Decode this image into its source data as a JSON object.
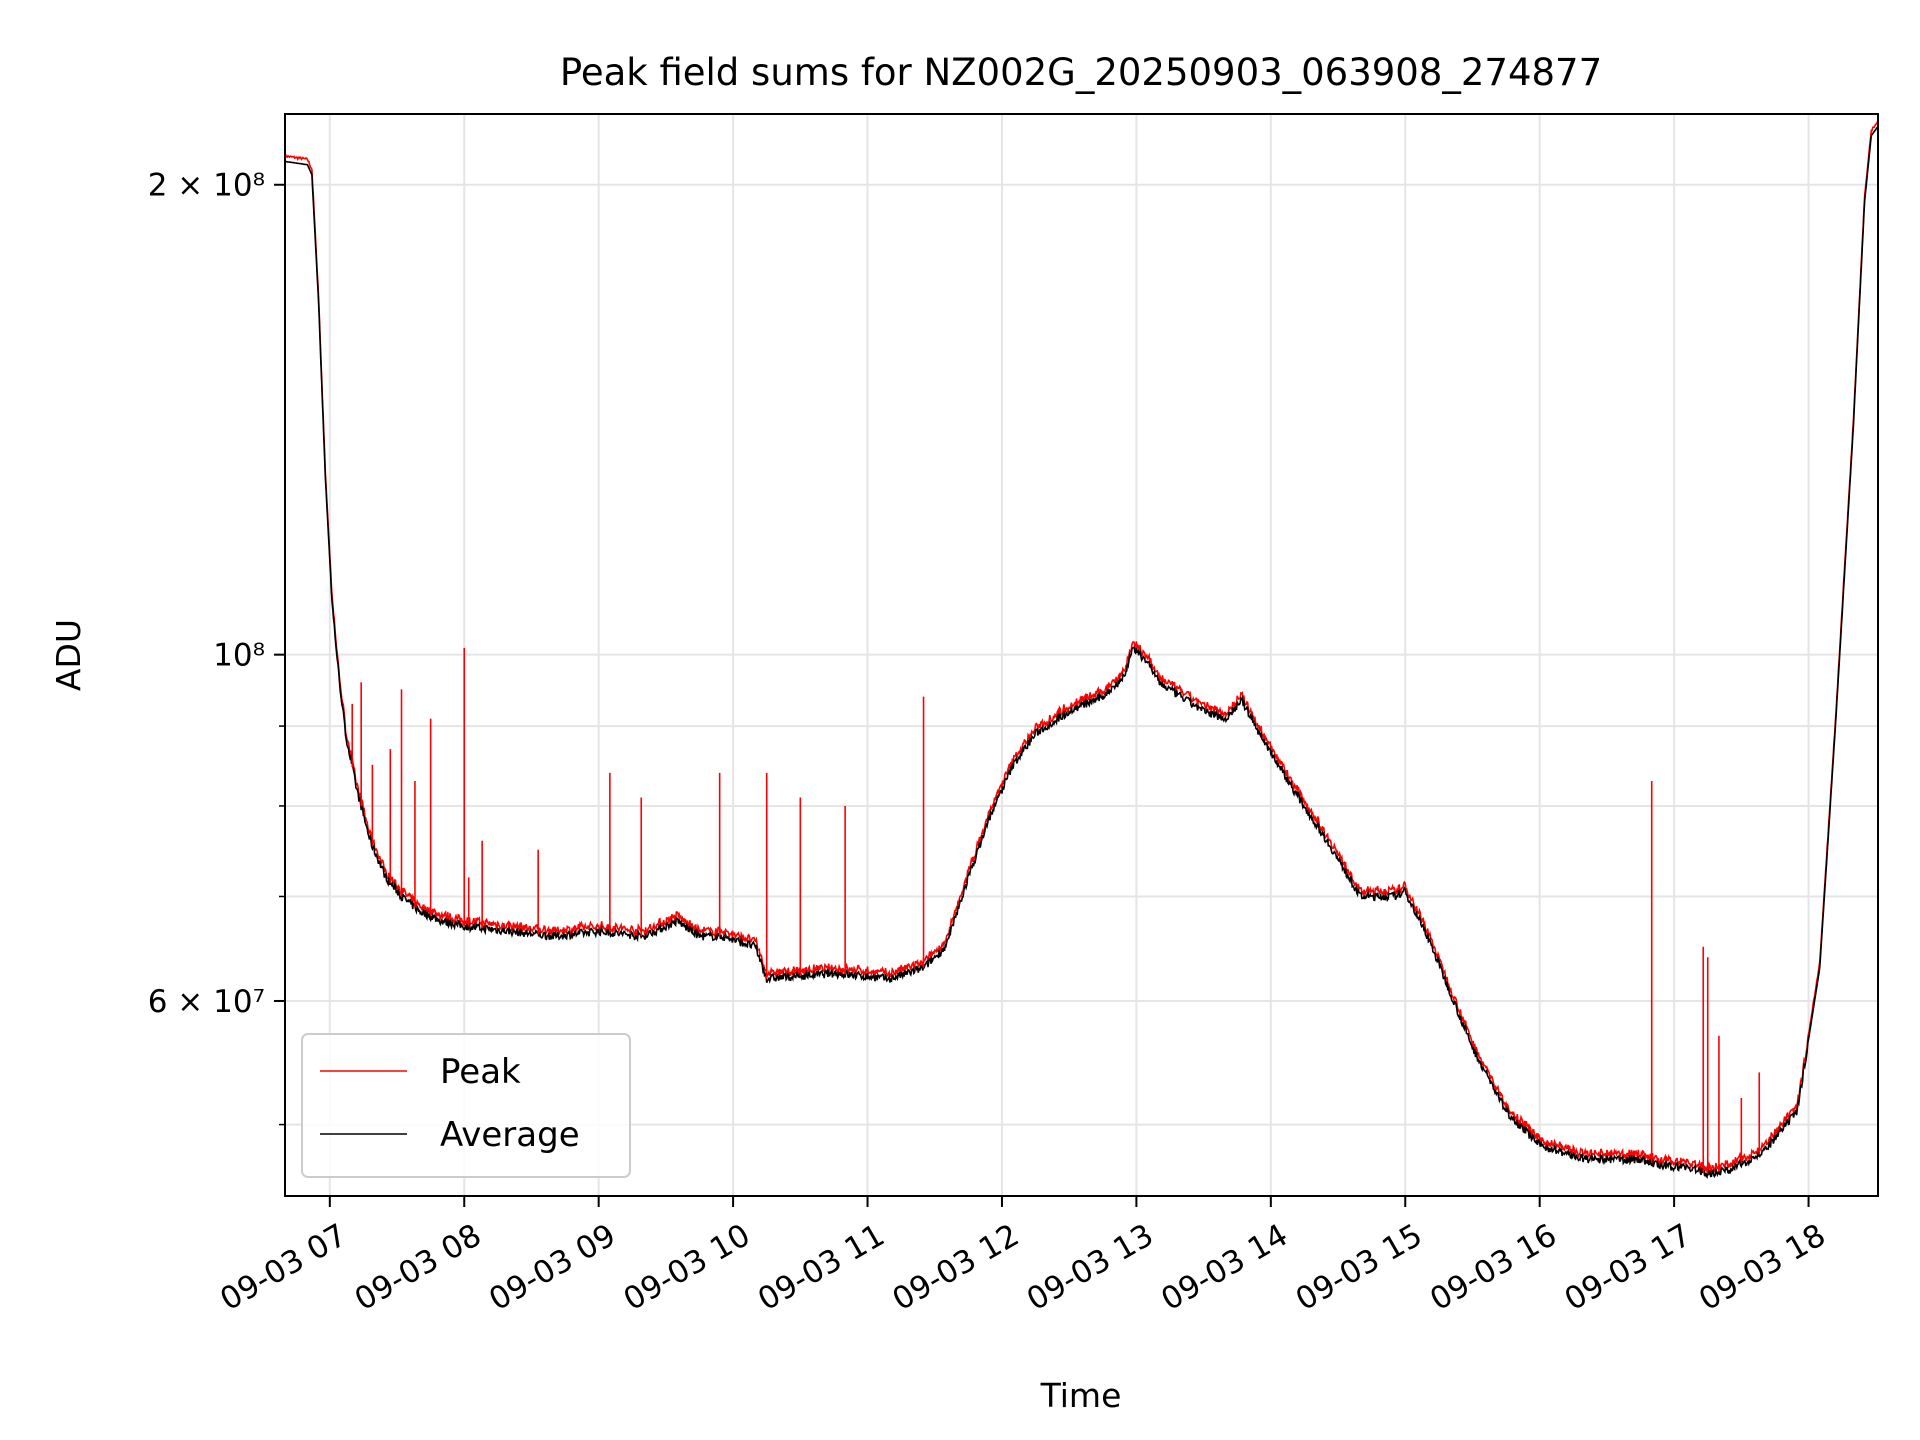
{
  "chart_data": {
    "type": "line",
    "title": "Peak field sums for NZ002G_20250903_063908_274877",
    "xlabel": "Time",
    "ylabel": "ADU",
    "x_range": [
      "2025-09-03 06:40",
      "2025-09-03 18:31"
    ],
    "y_scale": "log",
    "ylim": [
      45000000,
      222000000
    ],
    "grid": true,
    "legend_position": "lower left",
    "x_ticks": [
      {
        "value": "2025-09-03 07:00",
        "label": "09-03 07"
      },
      {
        "value": "2025-09-03 08:00",
        "label": "09-03 08"
      },
      {
        "value": "2025-09-03 09:00",
        "label": "09-03 09"
      },
      {
        "value": "2025-09-03 10:00",
        "label": "09-03 10"
      },
      {
        "value": "2025-09-03 11:00",
        "label": "09-03 11"
      },
      {
        "value": "2025-09-03 12:00",
        "label": "09-03 12"
      },
      {
        "value": "2025-09-03 13:00",
        "label": "09-03 13"
      },
      {
        "value": "2025-09-03 14:00",
        "label": "09-03 14"
      },
      {
        "value": "2025-09-03 15:00",
        "label": "09-03 15"
      },
      {
        "value": "2025-09-03 16:00",
        "label": "09-03 16"
      },
      {
        "value": "2025-09-03 17:00",
        "label": "09-03 17"
      },
      {
        "value": "2025-09-03 18:00",
        "label": "09-03 18"
      }
    ],
    "y_major_ticks": [
      {
        "value": 200000000,
        "label": "2 × 10⁸"
      },
      {
        "value": 100000000,
        "label": "10⁸"
      },
      {
        "value": 60000000,
        "label": "6 × 10⁷"
      }
    ],
    "y_minor_ticks": [
      50000000,
      70000000,
      80000000,
      90000000
    ],
    "series": [
      {
        "name": "Average",
        "color": "#000000",
        "points": [
          [
            "2025-09-03 06:40",
            207000000
          ],
          [
            "2025-09-03 06:50",
            206000000
          ],
          [
            "2025-09-03 06:52",
            203000000
          ],
          [
            "2025-09-03 06:55",
            168000000
          ],
          [
            "2025-09-03 06:58",
            130000000
          ],
          [
            "2025-09-03 07:01",
            108000000
          ],
          [
            "2025-09-03 07:04",
            97000000
          ],
          [
            "2025-09-03 07:07",
            89000000
          ],
          [
            "2025-09-03 07:12",
            82000000
          ],
          [
            "2025-09-03 07:18",
            76000000
          ],
          [
            "2025-09-03 07:25",
            72000000
          ],
          [
            "2025-09-03 07:32",
            70000000
          ],
          [
            "2025-09-03 07:40",
            68500000
          ],
          [
            "2025-09-03 07:50",
            67500000
          ],
          [
            "2025-09-03 08:00",
            67000000
          ],
          [
            "2025-09-03 08:20",
            66500000
          ],
          [
            "2025-09-03 08:40",
            66000000
          ],
          [
            "2025-09-03 09:00",
            66500000
          ],
          [
            "2025-09-03 09:20",
            66000000
          ],
          [
            "2025-09-03 09:35",
            67500000
          ],
          [
            "2025-09-03 09:45",
            66000000
          ],
          [
            "2025-09-03 09:55",
            66000000
          ],
          [
            "2025-09-03 10:10",
            65000000
          ],
          [
            "2025-09-03 10:15",
            62000000
          ],
          [
            "2025-09-03 10:45",
            62500000
          ],
          [
            "2025-09-03 11:10",
            62000000
          ],
          [
            "2025-09-03 11:25",
            63000000
          ],
          [
            "2025-09-03 11:35",
            65000000
          ],
          [
            "2025-09-03 11:45",
            72000000
          ],
          [
            "2025-09-03 11:55",
            79000000
          ],
          [
            "2025-09-03 12:05",
            85000000
          ],
          [
            "2025-09-03 12:15",
            89000000
          ],
          [
            "2025-09-03 12:30",
            92000000
          ],
          [
            "2025-09-03 12:45",
            94000000
          ],
          [
            "2025-09-03 12:55",
            97000000
          ],
          [
            "2025-09-03 12:58",
            101000000
          ],
          [
            "2025-09-03 13:05",
            99000000
          ],
          [
            "2025-09-03 13:10",
            96000000
          ],
          [
            "2025-09-03 13:30",
            92000000
          ],
          [
            "2025-09-03 13:40",
            91000000
          ],
          [
            "2025-09-03 13:47",
            93500000
          ],
          [
            "2025-09-03 13:55",
            89000000
          ],
          [
            "2025-09-03 14:10",
            82000000
          ],
          [
            "2025-09-03 14:25",
            76000000
          ],
          [
            "2025-09-03 14:40",
            70000000
          ],
          [
            "2025-09-03 14:55",
            70000000
          ],
          [
            "2025-09-03 15:00",
            70500000
          ],
          [
            "2025-09-03 15:10",
            66000000
          ],
          [
            "2025-09-03 15:30",
            56000000
          ],
          [
            "2025-09-03 15:45",
            51000000
          ],
          [
            "2025-09-03 16:00",
            48500000
          ],
          [
            "2025-09-03 16:20",
            47500000
          ],
          [
            "2025-09-03 16:45",
            47500000
          ],
          [
            "2025-09-03 16:55",
            47000000
          ],
          [
            "2025-09-03 17:05",
            47000000
          ],
          [
            "2025-09-03 17:15",
            46500000
          ],
          [
            "2025-09-03 17:25",
            46800000
          ],
          [
            "2025-09-03 17:40",
            48000000
          ],
          [
            "2025-09-03 17:55",
            51000000
          ],
          [
            "2025-09-03 18:05",
            63000000
          ],
          [
            "2025-09-03 18:12",
            90000000
          ],
          [
            "2025-09-03 18:20",
            140000000
          ],
          [
            "2025-09-03 18:25",
            195000000
          ],
          [
            "2025-09-03 18:28",
            215000000
          ],
          [
            "2025-09-03 18:31",
            218000000
          ]
        ]
      },
      {
        "name": "Peak",
        "color": "#ff0000",
        "description_of_spikes": "Peak follows the average closely, with isolated upward spikes",
        "spikes": [
          [
            "2025-09-03 07:10",
            93000000
          ],
          [
            "2025-09-03 07:14",
            96000000
          ],
          [
            "2025-09-03 07:19",
            85000000
          ],
          [
            "2025-09-03 07:27",
            87000000
          ],
          [
            "2025-09-03 07:32",
            95000000
          ],
          [
            "2025-09-03 07:38",
            83000000
          ],
          [
            "2025-09-03 07:45",
            91000000
          ],
          [
            "2025-09-03 08:00",
            101000000
          ],
          [
            "2025-09-03 08:02",
            72000000
          ],
          [
            "2025-09-03 08:08",
            76000000
          ],
          [
            "2025-09-03 08:33",
            75000000
          ],
          [
            "2025-09-03 09:05",
            84000000
          ],
          [
            "2025-09-03 09:19",
            81000000
          ],
          [
            "2025-09-03 09:54",
            84000000
          ],
          [
            "2025-09-03 10:15",
            84000000
          ],
          [
            "2025-09-03 10:30",
            81000000
          ],
          [
            "2025-09-03 10:50",
            80000000
          ],
          [
            "2025-09-03 11:25",
            94000000
          ],
          [
            "2025-09-03 16:50",
            83000000
          ],
          [
            "2025-09-03 17:13",
            65000000
          ],
          [
            "2025-09-03 17:15",
            64000000
          ],
          [
            "2025-09-03 17:20",
            57000000
          ],
          [
            "2025-09-03 17:30",
            52000000
          ],
          [
            "2025-09-03 17:38",
            54000000
          ]
        ]
      }
    ]
  }
}
